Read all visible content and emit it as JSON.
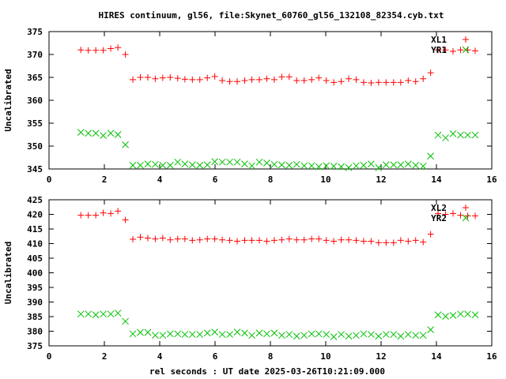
{
  "chart_data": {
    "type": "scatter",
    "title": "HIRES continuum, gl56, file:Skynet_60760_gl56_132108_82354.cyb.txt",
    "xlabel": "rel seconds : UT date 2025-03-26T10:21:09.000",
    "colors": {
      "red": "#ff0000",
      "green": "#00c000"
    },
    "x": [
      1.15,
      1.42,
      1.69,
      1.96,
      2.23,
      2.49,
      2.76,
      3.03,
      3.3,
      3.57,
      3.84,
      4.11,
      4.38,
      4.65,
      4.91,
      5.18,
      5.45,
      5.72,
      5.99,
      6.26,
      6.53,
      6.8,
      7.07,
      7.33,
      7.6,
      7.87,
      8.14,
      8.41,
      8.68,
      8.95,
      9.22,
      9.49,
      9.75,
      10.02,
      10.29,
      10.56,
      10.83,
      11.1,
      11.37,
      11.64,
      11.91,
      12.18,
      12.45,
      12.71,
      12.98,
      13.25,
      13.52,
      13.79,
      14.06,
      14.33,
      14.6,
      14.87,
      15.13,
      15.4
    ],
    "panels": [
      {
        "ylabel": "Uncalibrated",
        "xlim": [
          0,
          16
        ],
        "ylim": [
          345,
          375
        ],
        "xticks": [
          0,
          2,
          4,
          6,
          8,
          10,
          12,
          14,
          16
        ],
        "yticks": [
          345,
          350,
          355,
          360,
          365,
          370,
          375
        ],
        "legend_position": "top-right",
        "series": [
          {
            "name": "XL1",
            "marker": "plus",
            "color": "#ff0000",
            "values": [
              371.0,
              370.9,
              370.9,
              370.9,
              371.3,
              371.5,
              370.0,
              364.5,
              365.0,
              365.0,
              364.7,
              364.9,
              365.0,
              364.8,
              364.6,
              364.5,
              364.5,
              364.9,
              365.2,
              364.3,
              364.1,
              364.1,
              364.3,
              364.5,
              364.5,
              364.7,
              364.5,
              365.1,
              365.1,
              364.3,
              364.3,
              364.5,
              364.9,
              364.3,
              363.9,
              364.1,
              364.7,
              364.5,
              363.9,
              363.8,
              363.9,
              363.9,
              363.9,
              363.9,
              364.3,
              364.1,
              364.7,
              366.0,
              371.0,
              371.0,
              370.7,
              371.0,
              371.0,
              370.8
            ]
          },
          {
            "name": "YR1",
            "marker": "cross",
            "color": "#00c000",
            "values": [
              353.0,
              352.8,
              352.8,
              352.3,
              352.8,
              352.5,
              350.3,
              345.8,
              345.8,
              346.1,
              346.0,
              345.8,
              345.8,
              346.5,
              346.1,
              345.9,
              345.8,
              345.9,
              346.6,
              346.5,
              346.5,
              346.5,
              346.1,
              345.7,
              346.5,
              346.3,
              346.0,
              345.9,
              345.8,
              346.0,
              345.7,
              345.7,
              345.5,
              345.7,
              345.6,
              345.5,
              345.3,
              345.7,
              345.8,
              346.1,
              345.3,
              345.9,
              345.9,
              345.9,
              346.1,
              345.8,
              345.6,
              347.8,
              352.4,
              351.8,
              352.7,
              352.4,
              352.4,
              352.4
            ]
          }
        ]
      },
      {
        "ylabel": "Uncalibrated",
        "xlim": [
          0,
          16
        ],
        "ylim": [
          375,
          425
        ],
        "xticks": [
          0,
          2,
          4,
          6,
          8,
          10,
          12,
          14,
          16
        ],
        "yticks": [
          375,
          380,
          385,
          390,
          395,
          400,
          405,
          410,
          415,
          420,
          425
        ],
        "legend_position": "top-right",
        "series": [
          {
            "name": "XL2",
            "marker": "plus",
            "color": "#ff0000",
            "values": [
              419.7,
              419.7,
              419.7,
              420.5,
              420.3,
              421.1,
              418.1,
              411.5,
              412.2,
              411.9,
              411.6,
              411.9,
              411.3,
              411.6,
              411.6,
              411.1,
              411.3,
              411.6,
              411.6,
              411.3,
              411.1,
              410.8,
              411.1,
              411.1,
              411.1,
              410.8,
              411.1,
              411.3,
              411.6,
              411.3,
              411.3,
              411.6,
              411.6,
              411.1,
              410.8,
              411.3,
              411.3,
              411.1,
              410.8,
              410.8,
              410.3,
              410.3,
              410.3,
              411.1,
              410.8,
              411.1,
              410.5,
              413.2,
              420.3,
              420.0,
              420.3,
              419.7,
              419.5,
              419.5
            ]
          },
          {
            "name": "YR2",
            "marker": "cross",
            "color": "#00c000",
            "values": [
              385.9,
              385.9,
              385.6,
              385.9,
              385.9,
              386.2,
              383.4,
              379.1,
              379.6,
              379.6,
              378.6,
              378.6,
              379.1,
              379.1,
              378.9,
              378.9,
              378.9,
              379.4,
              379.7,
              378.9,
              378.9,
              379.7,
              379.4,
              378.6,
              379.4,
              379.1,
              379.4,
              378.6,
              378.9,
              378.3,
              378.6,
              379.1,
              379.1,
              378.9,
              378.1,
              378.9,
              378.3,
              378.6,
              379.1,
              378.9,
              378.3,
              378.9,
              378.9,
              378.3,
              378.9,
              378.6,
              378.6,
              380.5,
              385.6,
              385.1,
              385.4,
              385.9,
              385.9,
              385.6
            ]
          }
        ]
      }
    ]
  }
}
